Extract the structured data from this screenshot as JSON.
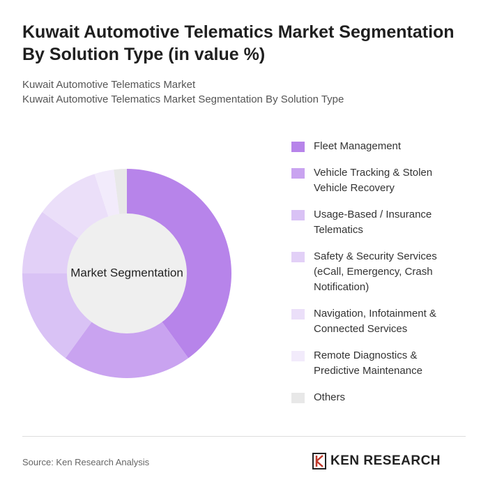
{
  "chart_data": {
    "type": "donut",
    "title": "Kuwait Automotive Telematics Market Segmentation By Solution Type (in value %)",
    "subtitle": [
      "Kuwait Automotive Telematics Market",
      "Kuwait Automotive Telematics Market Segmentation By Solution Type"
    ],
    "center_label": "Market Segmentation",
    "categories": [
      "Fleet Management",
      "Vehicle Tracking & Stolen Vehicle Recovery",
      "Usage-Based / Insurance Telematics",
      "Safety & Security Services (eCall, Emergency, Crash Notification)",
      "Navigation, Infotainment & Connected Services",
      "Remote Diagnostics & Predictive Maintenance",
      "Others"
    ],
    "values": [
      40,
      20,
      15,
      10,
      10,
      3,
      2
    ],
    "colors": [
      "#b784ea",
      "#c9a3f0",
      "#d9c2f5",
      "#e2d0f7",
      "#ebdff9",
      "#f2ebfb",
      "#e8e8e8"
    ],
    "source": "Source: Ken Research Analysis",
    "logo": "KEN RESEARCH"
  }
}
